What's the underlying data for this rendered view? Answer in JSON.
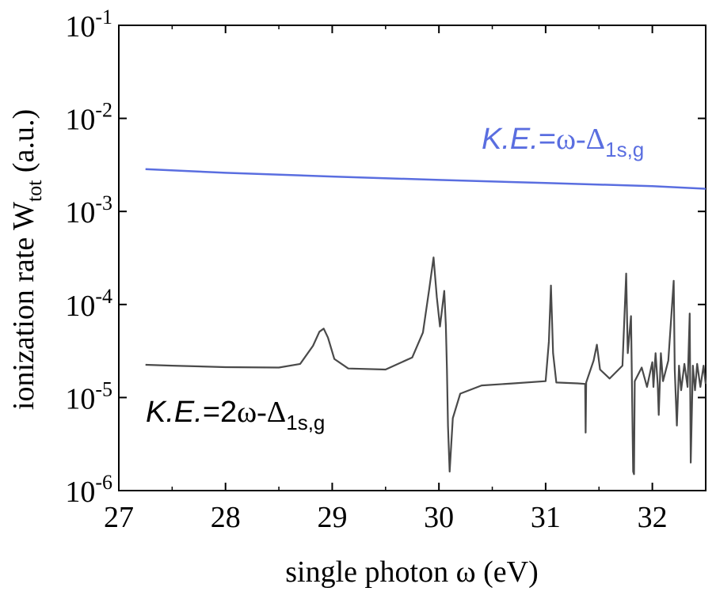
{
  "chart_data": {
    "type": "line",
    "xlabel": "single photon ω (eV)",
    "ylabel_main": "ionization rate W",
    "ylabel_sub": "tot",
    "ylabel_tail": " (a.u.)",
    "xlim": [
      27,
      32.5
    ],
    "ylim": [
      1e-06,
      0.1
    ],
    "yscale": "log",
    "x_ticks": [
      27,
      28,
      29,
      30,
      31,
      32
    ],
    "y_ticks": [
      {
        "exp": "-6",
        "value": 1e-06
      },
      {
        "exp": "-5",
        "value": 1e-05
      },
      {
        "exp": "-4",
        "value": 0.0001
      },
      {
        "exp": "-3",
        "value": 0.001
      },
      {
        "exp": "-2",
        "value": 0.01
      },
      {
        "exp": "-1",
        "value": 0.1
      }
    ],
    "y_tick_base": "10",
    "series": [
      {
        "name": "K.E.=ω-Δ1s,g",
        "color": "#5a6ee0",
        "x": [
          27.25,
          28.0,
          29.0,
          30.0,
          31.0,
          32.0,
          32.5
        ],
        "values": [
          0.00285,
          0.0026,
          0.00237,
          0.00218,
          0.00202,
          0.00187,
          0.00175
        ]
      },
      {
        "name": "K.E.=2ω-Δ1s,g",
        "color": "#4a4a4a",
        "x": [
          27.25,
          27.5,
          28.0,
          28.5,
          28.7,
          28.82,
          28.88,
          28.92,
          28.96,
          29.02,
          29.15,
          29.5,
          29.75,
          29.85,
          29.91,
          29.95,
          29.98,
          30.01,
          30.03,
          30.05,
          30.065,
          30.075,
          30.085,
          30.1,
          30.13,
          30.2,
          30.4,
          30.7,
          31.0,
          31.03,
          31.05,
          31.07,
          31.1,
          31.3,
          31.37,
          31.375,
          31.38,
          31.45,
          31.48,
          31.51,
          31.6,
          31.72,
          31.755,
          31.77,
          31.8,
          31.82,
          31.828,
          31.835,
          31.9,
          31.95,
          32.0,
          32.01,
          32.03,
          32.05,
          32.06,
          32.08,
          32.1,
          32.15,
          32.2,
          32.21,
          32.23,
          32.25,
          32.27,
          32.3,
          32.33,
          32.35,
          32.36,
          32.38,
          32.4,
          32.42,
          32.45,
          32.48,
          32.5
        ],
        "values": [
          2.25e-05,
          2.2e-05,
          2.12e-05,
          2.1e-05,
          2.3e-05,
          3.6e-05,
          5.1e-05,
          5.5e-05,
          4.4e-05,
          2.6e-05,
          2.05e-05,
          2e-05,
          2.7e-05,
          5e-05,
          0.00015,
          0.00032,
          0.00012,
          5.8e-05,
          9e-05,
          0.00014,
          6e-05,
          2e-05,
          5e-06,
          1.6e-06,
          6e-06,
          1.1e-05,
          1.35e-05,
          1.42e-05,
          1.5e-05,
          4e-05,
          0.00016,
          3e-05,
          1.45e-05,
          1.42e-05,
          1.4e-05,
          4.2e-06,
          1.45e-05,
          2.5e-05,
          3.7e-05,
          2e-05,
          1.6e-05,
          2.2e-05,
          0.000215,
          3e-05,
          7.5e-05,
          1.6e-06,
          1.5e-06,
          1.5e-05,
          2.1e-05,
          1.3e-05,
          2.4e-05,
          1.3e-05,
          3e-05,
          1.4e-05,
          6.5e-06,
          3e-05,
          1.5e-05,
          2.5e-05,
          0.00018,
          2e-05,
          5e-06,
          2.2e-05,
          1.2e-05,
          2.3e-05,
          1.3e-05,
          8e-05,
          2e-06,
          2.2e-05,
          1.2e-05,
          2.3e-05,
          1.3e-05,
          2.2e-05,
          1.4e-05
        ]
      }
    ],
    "annotations": [
      {
        "italic": "K.E.",
        "prefix": "=",
        "symbol": "ω-Δ",
        "sub": "1s,g",
        "color": "#5a6ee0"
      },
      {
        "italic": "K.E.",
        "prefix": "=2",
        "symbol": "ω-Δ",
        "sub": "1s,g",
        "color": "#000000"
      }
    ]
  }
}
